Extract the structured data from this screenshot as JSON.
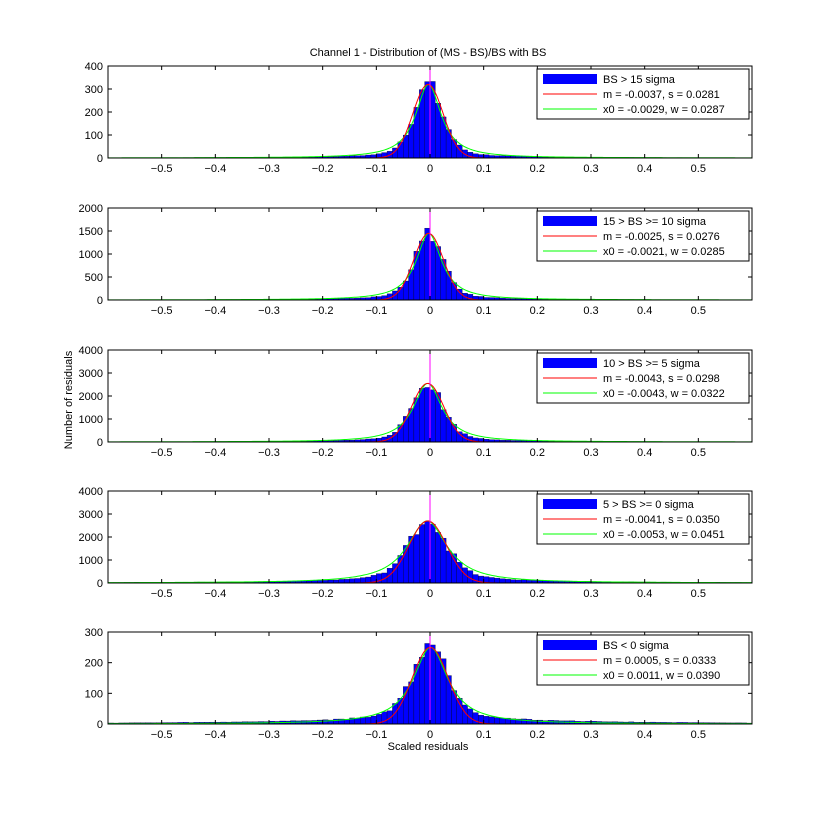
{
  "figure": {
    "title": "Channel 1 - Distribution of (MS - BS)/BS with BS",
    "ylabel": "Number of residuals",
    "xlabel": "Scaled residuals"
  },
  "colors": {
    "bars": "#0000ff",
    "gauss_fit": "#ff0000",
    "lorentz_fit": "#00ff00",
    "center_line": "#ff00ff",
    "frame": "#000000"
  },
  "chart_data": [
    {
      "type": "bar",
      "xlim": [
        -0.6,
        0.6
      ],
      "ylim": [
        0,
        400
      ],
      "yticks": [
        0,
        100,
        200,
        300,
        400
      ],
      "xticks": [
        -0.5,
        -0.4,
        -0.3,
        -0.2,
        -0.1,
        0,
        0.1,
        0.2,
        0.3,
        0.4,
        0.5
      ],
      "peak": 320,
      "legend": {
        "bars": "BS > 15 sigma",
        "gauss": "m = -0.0037, s = 0.0281",
        "lorentz": "x0 = -0.0029, w = 0.0287"
      },
      "gauss": {
        "m": -0.0037,
        "s": 0.0281
      },
      "lorentz": {
        "x0": -0.0029,
        "w": 0.0287
      },
      "tail_level": 0.012
    },
    {
      "type": "bar",
      "xlim": [
        -0.6,
        0.6
      ],
      "ylim": [
        0,
        2000
      ],
      "yticks": [
        0,
        500,
        1000,
        1500,
        2000
      ],
      "xticks": [
        -0.5,
        -0.4,
        -0.3,
        -0.2,
        -0.1,
        0,
        0.1,
        0.2,
        0.3,
        0.4,
        0.5
      ],
      "peak": 1450,
      "legend": {
        "bars": "15 > BS >= 10 sigma",
        "gauss": "m = -0.0025, s = 0.0276",
        "lorentz": "x0 = -0.0021, w = 0.0285"
      },
      "gauss": {
        "m": -0.0025,
        "s": 0.0276
      },
      "lorentz": {
        "x0": -0.0021,
        "w": 0.0285
      },
      "tail_level": 0.01
    },
    {
      "type": "bar",
      "xlim": [
        -0.6,
        0.6
      ],
      "ylim": [
        0,
        4000
      ],
      "yticks": [
        0,
        1000,
        2000,
        3000,
        4000
      ],
      "xticks": [
        -0.5,
        -0.4,
        -0.3,
        -0.2,
        -0.1,
        0,
        0.1,
        0.2,
        0.3,
        0.4,
        0.5
      ],
      "peak": 2550,
      "legend": {
        "bars": "10 > BS >= 5 sigma",
        "gauss": "m = -0.0043, s = 0.0298",
        "lorentz": "x0 = -0.0043, w = 0.0322"
      },
      "gauss": {
        "m": -0.0043,
        "s": 0.0298
      },
      "lorentz": {
        "x0": -0.0043,
        "w": 0.0322
      },
      "tail_level": 0.012
    },
    {
      "type": "bar",
      "xlim": [
        -0.6,
        0.6
      ],
      "ylim": [
        0,
        4000
      ],
      "yticks": [
        0,
        1000,
        2000,
        3000,
        4000
      ],
      "xticks": [
        -0.5,
        -0.4,
        -0.3,
        -0.2,
        -0.1,
        0,
        0.1,
        0.2,
        0.3,
        0.4,
        0.5
      ],
      "peak": 2700,
      "legend": {
        "bars": "5 > BS >= 0 sigma",
        "gauss": "m = -0.0041, s = 0.0350",
        "lorentz": "x0 = -0.0053, w = 0.0451"
      },
      "gauss": {
        "m": -0.0041,
        "s": 0.035
      },
      "lorentz": {
        "x0": -0.0053,
        "w": 0.0451
      },
      "tail_level": 0.03
    },
    {
      "type": "bar",
      "xlim": [
        -0.6,
        0.6
      ],
      "ylim": [
        0,
        300
      ],
      "yticks": [
        0,
        100,
        200,
        300
      ],
      "xticks": [
        -0.5,
        -0.4,
        -0.3,
        -0.2,
        -0.1,
        0,
        0.1,
        0.2,
        0.3,
        0.4,
        0.5
      ],
      "peak": 250,
      "legend": {
        "bars": "BS < 0 sigma",
        "gauss": "m = 0.0005, s = 0.0333",
        "lorentz": "x0 = 0.0011, w = 0.0390"
      },
      "gauss": {
        "m": 0.0005,
        "s": 0.0333
      },
      "lorentz": {
        "x0": 0.0011,
        "w": 0.039
      },
      "tail_level": 0.06
    }
  ]
}
